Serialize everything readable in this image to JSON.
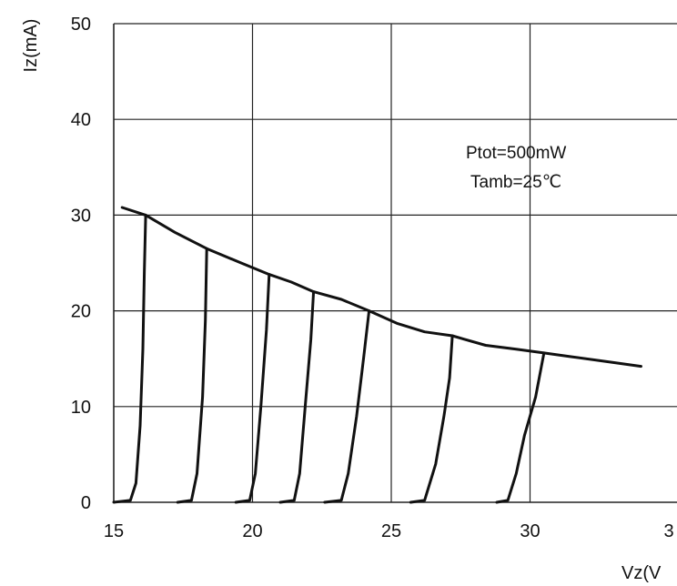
{
  "chart_data": {
    "type": "line",
    "ylabel": "Iz(mA)",
    "xlabel": "Vz(V",
    "xlim": [
      15,
      35
    ],
    "ylim": [
      0,
      50
    ],
    "x_ticks": [
      "15",
      "20",
      "25",
      "30",
      "3"
    ],
    "y_ticks": [
      "0",
      "10",
      "20",
      "30",
      "40",
      "50"
    ],
    "grid": true,
    "annotations": [
      "Ptot=500mW",
      "Tamb=25℃"
    ],
    "series": [
      {
        "points": [
          [
            15.0,
            0
          ],
          [
            15.6,
            0.2
          ],
          [
            15.8,
            2
          ],
          [
            15.95,
            8
          ],
          [
            16.05,
            16
          ],
          [
            16.1,
            24
          ],
          [
            16.15,
            30
          ]
        ]
      },
      {
        "points": [
          [
            17.3,
            0
          ],
          [
            17.8,
            0.2
          ],
          [
            18.0,
            3
          ],
          [
            18.2,
            11
          ],
          [
            18.3,
            19
          ],
          [
            18.35,
            26.5
          ]
        ]
      },
      {
        "points": [
          [
            19.4,
            0
          ],
          [
            19.9,
            0.2
          ],
          [
            20.1,
            3
          ],
          [
            20.3,
            10
          ],
          [
            20.5,
            18
          ],
          [
            20.6,
            23.8
          ]
        ]
      },
      {
        "points": [
          [
            21.0,
            0
          ],
          [
            21.5,
            0.2
          ],
          [
            21.7,
            3
          ],
          [
            21.9,
            10
          ],
          [
            22.1,
            17
          ],
          [
            22.2,
            22
          ]
        ]
      },
      {
        "points": [
          [
            22.6,
            0
          ],
          [
            23.2,
            0.2
          ],
          [
            23.45,
            3
          ],
          [
            23.75,
            9
          ],
          [
            24.0,
            15
          ],
          [
            24.2,
            20
          ]
        ]
      },
      {
        "points": [
          [
            25.7,
            0
          ],
          [
            26.2,
            0.2
          ],
          [
            26.6,
            4
          ],
          [
            26.9,
            9
          ],
          [
            27.1,
            13
          ],
          [
            27.2,
            17.4
          ]
        ]
      },
      {
        "points": [
          [
            28.8,
            0
          ],
          [
            29.2,
            0.2
          ],
          [
            29.5,
            3
          ],
          [
            29.8,
            7
          ],
          [
            30.2,
            11
          ],
          [
            30.5,
            15.6
          ]
        ]
      },
      {
        "points": [
          [
            15.3,
            30.8
          ],
          [
            16.15,
            30
          ],
          [
            17.2,
            28.2
          ],
          [
            18.35,
            26.5
          ],
          [
            19.5,
            25.1
          ],
          [
            20.6,
            23.8
          ],
          [
            21.4,
            23
          ],
          [
            22.2,
            22
          ],
          [
            23.2,
            21.2
          ],
          [
            24.2,
            20
          ],
          [
            25.2,
            18.7
          ],
          [
            26.2,
            17.8
          ],
          [
            27.2,
            17.4
          ],
          [
            28.4,
            16.4
          ],
          [
            29.5,
            16
          ],
          [
            30.5,
            15.6
          ],
          [
            31.5,
            15.2
          ],
          [
            33.0,
            14.6
          ],
          [
            34.0,
            14.2
          ]
        ]
      }
    ]
  }
}
